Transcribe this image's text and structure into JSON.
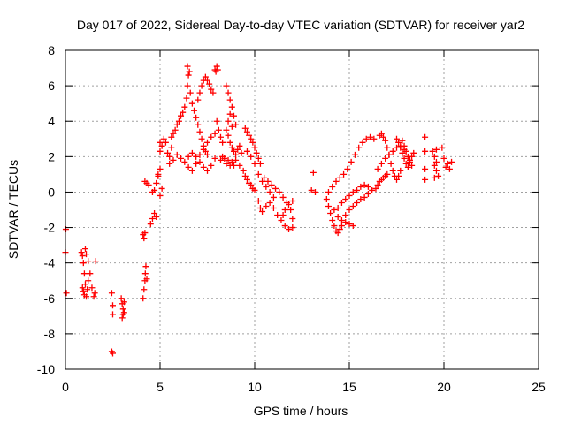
{
  "chart_data": {
    "type": "scatter",
    "title": "Day 017 of 2022, Sidereal Day-to-day VTEC variation (SDTVAR) for receiver yar2",
    "xlabel": "GPS time / hours",
    "ylabel": "SDTVAR / TECUs",
    "xlim": [
      0,
      25
    ],
    "ylim": [
      -10,
      8
    ],
    "x_ticks": [
      0,
      5,
      10,
      15,
      20,
      25
    ],
    "y_ticks": [
      -10,
      -8,
      -6,
      -4,
      -2,
      0,
      2,
      4,
      6,
      8
    ],
    "x_tick_labels": [
      "0",
      "5",
      "10",
      "15",
      "20",
      "25"
    ],
    "y_tick_labels": [
      "-10",
      "-8",
      "-6",
      "-4",
      "-2",
      "0",
      "2",
      "4",
      "6",
      "8"
    ],
    "grid": true,
    "marker": "plus",
    "marker_color": "#ff0000",
    "points": [
      [
        0.0,
        -3.4
      ],
      [
        0.02,
        -2.1
      ],
      [
        0.05,
        -5.7
      ],
      [
        0.85,
        -3.4
      ],
      [
        0.9,
        -3.6
      ],
      [
        0.95,
        -4.0
      ],
      [
        1.0,
        -4.6
      ],
      [
        1.05,
        -5.2
      ],
      [
        0.9,
        -5.4
      ],
      [
        0.95,
        -5.6
      ],
      [
        1.0,
        -5.8
      ],
      [
        1.1,
        -5.9
      ],
      [
        1.15,
        -5.5
      ],
      [
        1.2,
        -5.0
      ],
      [
        1.05,
        -3.2
      ],
      [
        1.1,
        -3.5
      ],
      [
        1.2,
        -3.9
      ],
      [
        1.3,
        -4.6
      ],
      [
        1.4,
        -5.4
      ],
      [
        1.5,
        -5.9
      ],
      [
        1.55,
        -5.7
      ],
      [
        1.6,
        -3.9
      ],
      [
        2.45,
        -5.7
      ],
      [
        2.5,
        -6.4
      ],
      [
        2.5,
        -6.9
      ],
      [
        2.45,
        -9.0
      ],
      [
        2.5,
        -9.1
      ],
      [
        2.95,
        -6.0
      ],
      [
        3.0,
        -6.3
      ],
      [
        3.05,
        -6.6
      ],
      [
        3.1,
        -6.8
      ],
      [
        3.0,
        -7.1
      ],
      [
        3.1,
        -6.2
      ],
      [
        3.05,
        -6.9
      ],
      [
        4.1,
        -6.0
      ],
      [
        4.15,
        -5.5
      ],
      [
        4.2,
        -5.0
      ],
      [
        4.22,
        -4.6
      ],
      [
        4.25,
        -4.2
      ],
      [
        4.3,
        -4.9
      ],
      [
        4.1,
        -2.4
      ],
      [
        4.15,
        -2.6
      ],
      [
        4.2,
        -2.3
      ],
      [
        4.2,
        0.6
      ],
      [
        4.3,
        0.5
      ],
      [
        4.4,
        0.4
      ],
      [
        4.5,
        -1.8
      ],
      [
        4.6,
        -1.5
      ],
      [
        4.7,
        -1.2
      ],
      [
        4.8,
        -1.4
      ],
      [
        4.6,
        0.0
      ],
      [
        4.7,
        0.1
      ],
      [
        4.8,
        0.5
      ],
      [
        4.9,
        0.9
      ],
      [
        5.0,
        -0.2
      ],
      [
        5.1,
        0.2
      ],
      [
        4.9,
        1.0
      ],
      [
        5.0,
        1.3
      ],
      [
        5.0,
        2.3
      ],
      [
        5.0,
        2.8
      ],
      [
        5.1,
        2.6
      ],
      [
        5.2,
        3.0
      ],
      [
        5.3,
        2.8
      ],
      [
        5.4,
        2.2
      ],
      [
        5.5,
        2.0
      ],
      [
        5.6,
        2.5
      ],
      [
        5.6,
        3.1
      ],
      [
        5.7,
        3.3
      ],
      [
        5.8,
        3.5
      ],
      [
        5.9,
        3.8
      ],
      [
        6.0,
        4.0
      ],
      [
        6.1,
        4.3
      ],
      [
        6.2,
        4.5
      ],
      [
        6.3,
        4.8
      ],
      [
        6.4,
        5.3
      ],
      [
        6.45,
        6.0
      ],
      [
        6.5,
        6.6
      ],
      [
        6.45,
        7.1
      ],
      [
        6.55,
        6.8
      ],
      [
        6.6,
        5.6
      ],
      [
        6.7,
        5.0
      ],
      [
        6.8,
        4.6
      ],
      [
        6.9,
        4.2
      ],
      [
        7.0,
        3.8
      ],
      [
        7.1,
        3.4
      ],
      [
        7.2,
        3.0
      ],
      [
        7.3,
        2.6
      ],
      [
        7.4,
        2.3
      ],
      [
        7.5,
        2.1
      ],
      [
        5.5,
        1.6
      ],
      [
        5.7,
        1.8
      ],
      [
        5.9,
        2.1
      ],
      [
        6.1,
        1.9
      ],
      [
        6.3,
        1.7
      ],
      [
        6.5,
        1.4
      ],
      [
        6.7,
        1.2
      ],
      [
        6.9,
        1.6
      ],
      [
        7.1,
        2.1
      ],
      [
        7.3,
        2.4
      ],
      [
        7.5,
        2.8
      ],
      [
        7.7,
        3.1
      ],
      [
        7.9,
        3.3
      ],
      [
        6.5,
        2.0
      ],
      [
        6.7,
        2.2
      ],
      [
        6.9,
        2.0
      ],
      [
        7.1,
        1.7
      ],
      [
        7.3,
        1.4
      ],
      [
        7.5,
        1.2
      ],
      [
        7.7,
        1.5
      ],
      [
        7.9,
        1.9
      ],
      [
        7.0,
        5.2
      ],
      [
        7.1,
        5.6
      ],
      [
        7.2,
        6.0
      ],
      [
        7.3,
        6.3
      ],
      [
        7.4,
        6.5
      ],
      [
        7.5,
        6.3
      ],
      [
        7.6,
        6.1
      ],
      [
        7.7,
        5.8
      ],
      [
        7.8,
        5.6
      ],
      [
        7.9,
        6.9
      ],
      [
        8.0,
        7.1
      ],
      [
        7.95,
        6.8
      ],
      [
        8.05,
        6.9
      ],
      [
        8.0,
        4.0
      ],
      [
        8.1,
        3.5
      ],
      [
        8.2,
        3.1
      ],
      [
        8.3,
        2.8
      ],
      [
        8.2,
        1.8
      ],
      [
        8.3,
        2.0
      ],
      [
        8.4,
        1.9
      ],
      [
        8.5,
        1.6
      ],
      [
        8.6,
        1.8
      ],
      [
        8.7,
        1.5
      ],
      [
        8.8,
        1.7
      ],
      [
        8.9,
        1.5
      ],
      [
        8.5,
        6.0
      ],
      [
        8.6,
        5.6
      ],
      [
        8.7,
        5.2
      ],
      [
        8.8,
        4.8
      ],
      [
        8.9,
        4.3
      ],
      [
        9.0,
        3.8
      ],
      [
        8.6,
        4.0
      ],
      [
        8.7,
        4.4
      ],
      [
        8.8,
        3.7
      ],
      [
        8.5,
        3.5
      ],
      [
        8.6,
        3.2
      ],
      [
        8.7,
        2.8
      ],
      [
        8.8,
        2.5
      ],
      [
        8.9,
        2.3
      ],
      [
        9.0,
        2.1
      ],
      [
        9.1,
        2.4
      ],
      [
        9.2,
        2.6
      ],
      [
        9.3,
        2.2
      ],
      [
        9.0,
        1.8
      ],
      [
        9.2,
        1.5
      ],
      [
        9.4,
        1.2
      ],
      [
        9.5,
        0.9
      ],
      [
        9.6,
        0.7
      ],
      [
        9.7,
        0.5
      ],
      [
        9.8,
        0.4
      ],
      [
        9.9,
        0.2
      ],
      [
        10.0,
        0.1
      ],
      [
        9.5,
        3.6
      ],
      [
        9.6,
        3.4
      ],
      [
        9.7,
        3.2
      ],
      [
        9.8,
        3.0
      ],
      [
        9.9,
        2.8
      ],
      [
        10.0,
        2.5
      ],
      [
        10.1,
        2.2
      ],
      [
        10.2,
        1.9
      ],
      [
        10.3,
        1.6
      ],
      [
        9.6,
        2.3
      ],
      [
        9.8,
        2.0
      ],
      [
        10.0,
        1.6
      ],
      [
        10.2,
        1.0
      ],
      [
        10.4,
        0.6
      ],
      [
        10.6,
        0.3
      ],
      [
        10.8,
        0.0
      ],
      [
        11.0,
        -0.3
      ],
      [
        10.2,
        -0.5
      ],
      [
        10.3,
        -0.9
      ],
      [
        10.4,
        -1.1
      ],
      [
        10.6,
        -0.8
      ],
      [
        10.8,
        -0.6
      ],
      [
        11.0,
        -0.9
      ],
      [
        11.2,
        -1.3
      ],
      [
        11.4,
        -1.6
      ],
      [
        11.6,
        -1.9
      ],
      [
        11.8,
        -2.1
      ],
      [
        10.5,
        0.8
      ],
      [
        10.7,
        0.6
      ],
      [
        10.9,
        0.4
      ],
      [
        11.1,
        0.2
      ],
      [
        11.3,
        0.0
      ],
      [
        11.5,
        -0.3
      ],
      [
        11.7,
        -0.6
      ],
      [
        11.9,
        -1.0
      ],
      [
        12.0,
        -1.5
      ],
      [
        12.0,
        -2.0
      ],
      [
        11.5,
        -1.3
      ],
      [
        11.6,
        -1.0
      ],
      [
        11.8,
        -0.7
      ],
      [
        12.0,
        -0.5
      ],
      [
        13.0,
        0.1
      ],
      [
        13.1,
        1.1
      ],
      [
        13.2,
        0.0
      ],
      [
        13.8,
        -0.4
      ],
      [
        13.9,
        -0.8
      ],
      [
        14.0,
        -1.2
      ],
      [
        14.1,
        -1.6
      ],
      [
        14.2,
        -1.9
      ],
      [
        14.3,
        -2.2
      ],
      [
        14.4,
        -2.3
      ],
      [
        14.5,
        -2.1
      ],
      [
        14.6,
        -1.9
      ],
      [
        14.8,
        -1.7
      ],
      [
        15.0,
        -1.8
      ],
      [
        15.2,
        -1.9
      ],
      [
        13.9,
        0.0
      ],
      [
        14.1,
        0.3
      ],
      [
        14.3,
        0.6
      ],
      [
        14.5,
        0.8
      ],
      [
        14.7,
        1.0
      ],
      [
        14.9,
        1.3
      ],
      [
        15.1,
        1.7
      ],
      [
        15.3,
        2.1
      ],
      [
        15.5,
        2.5
      ],
      [
        15.7,
        2.8
      ],
      [
        15.9,
        3.0
      ],
      [
        16.1,
        3.1
      ],
      [
        16.3,
        3.0
      ],
      [
        14.4,
        -0.9
      ],
      [
        14.6,
        -0.6
      ],
      [
        14.8,
        -0.4
      ],
      [
        15.0,
        -0.2
      ],
      [
        15.2,
        0.0
      ],
      [
        15.4,
        0.1
      ],
      [
        15.6,
        0.3
      ],
      [
        15.8,
        0.4
      ],
      [
        16.0,
        0.3
      ],
      [
        14.2,
        -1.0
      ],
      [
        14.4,
        -1.4
      ],
      [
        14.6,
        -1.6
      ],
      [
        14.8,
        -1.3
      ],
      [
        15.0,
        -1.0
      ],
      [
        15.2,
        -0.8
      ],
      [
        15.4,
        -0.6
      ],
      [
        15.6,
        -0.4
      ],
      [
        15.8,
        -0.3
      ],
      [
        16.0,
        -0.1
      ],
      [
        16.2,
        0.1
      ],
      [
        16.4,
        0.2
      ],
      [
        16.5,
        0.4
      ],
      [
        16.6,
        0.6
      ],
      [
        16.7,
        0.7
      ],
      [
        16.8,
        0.8
      ],
      [
        16.9,
        0.9
      ],
      [
        17.0,
        1.0
      ],
      [
        16.6,
        3.2
      ],
      [
        16.7,
        3.3
      ],
      [
        16.8,
        3.1
      ],
      [
        16.9,
        2.9
      ],
      [
        17.0,
        2.5
      ],
      [
        17.1,
        2.1
      ],
      [
        17.2,
        1.6
      ],
      [
        17.3,
        1.2
      ],
      [
        17.4,
        0.9
      ],
      [
        17.5,
        0.7
      ],
      [
        17.6,
        0.9
      ],
      [
        17.7,
        1.2
      ],
      [
        16.5,
        1.3
      ],
      [
        16.7,
        1.6
      ],
      [
        16.9,
        1.9
      ],
      [
        17.1,
        2.1
      ],
      [
        17.3,
        2.3
      ],
      [
        17.5,
        2.5
      ],
      [
        17.7,
        2.6
      ],
      [
        17.9,
        2.4
      ],
      [
        17.5,
        3.0
      ],
      [
        17.6,
        2.8
      ],
      [
        17.7,
        2.5
      ],
      [
        17.8,
        2.2
      ],
      [
        17.9,
        1.9
      ],
      [
        18.0,
        1.6
      ],
      [
        18.1,
        1.4
      ],
      [
        18.2,
        1.7
      ],
      [
        18.3,
        2.0
      ],
      [
        18.4,
        2.2
      ],
      [
        17.8,
        2.9
      ],
      [
        17.9,
        2.6
      ],
      [
        18.0,
        2.3
      ],
      [
        18.1,
        2.0
      ],
      [
        18.2,
        1.8
      ],
      [
        18.3,
        1.5
      ],
      [
        19.0,
        3.1
      ],
      [
        19.0,
        2.3
      ],
      [
        19.0,
        1.3
      ],
      [
        19.0,
        0.7
      ],
      [
        19.4,
        2.3
      ],
      [
        19.5,
        2.0
      ],
      [
        19.6,
        1.7
      ],
      [
        19.5,
        1.5
      ],
      [
        19.6,
        1.2
      ],
      [
        19.7,
        0.9
      ],
      [
        19.5,
        0.8
      ],
      [
        19.6,
        2.4
      ],
      [
        19.9,
        2.5
      ],
      [
        20.0,
        1.9
      ],
      [
        20.2,
        1.6
      ],
      [
        20.3,
        1.3
      ],
      [
        20.4,
        1.7
      ],
      [
        20.1,
        1.4
      ]
    ]
  }
}
